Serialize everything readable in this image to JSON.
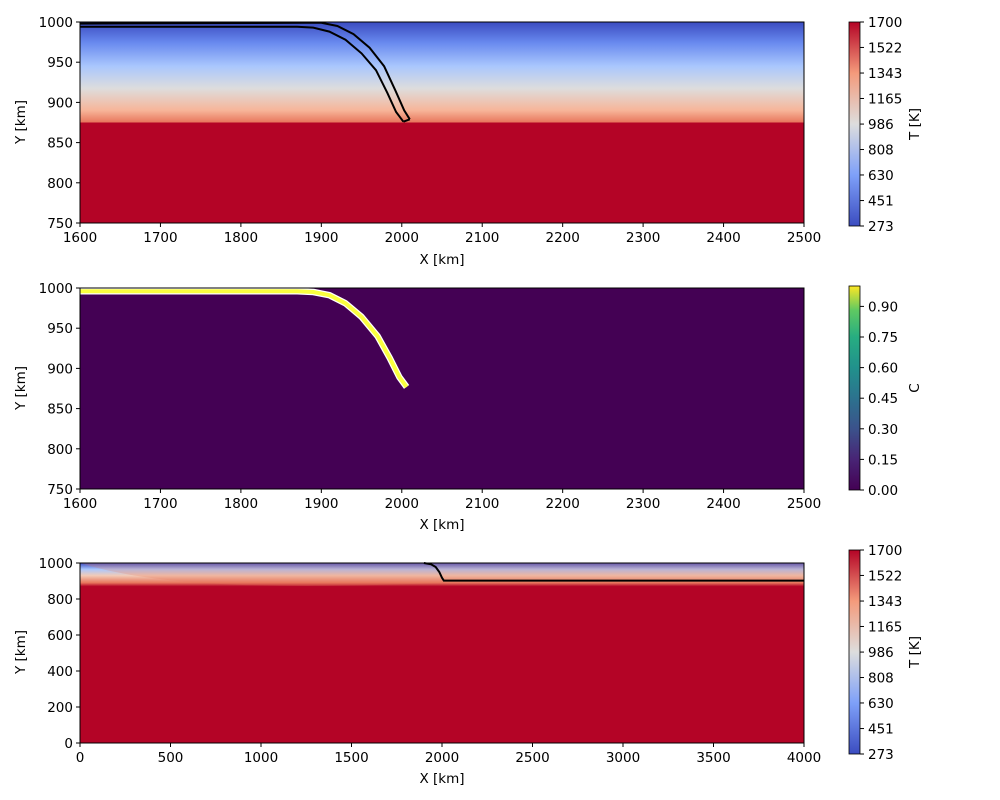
{
  "chart_data": [
    {
      "type": "heatmap",
      "xlabel": "X [km]",
      "ylabel": "Y [km]",
      "xlim": [
        1600,
        2500
      ],
      "ylim": [
        750,
        1000
      ],
      "xticks": [
        "1600",
        "1700",
        "1800",
        "1900",
        "2000",
        "2100",
        "2200",
        "2300",
        "2400",
        "2500"
      ],
      "yticks": [
        "750",
        "800",
        "850",
        "900",
        "950",
        "1000"
      ],
      "colorbar": {
        "label": "T [K]",
        "colormap": "coolwarm",
        "range": [
          273,
          1700
        ],
        "ticks": [
          "273",
          "451",
          "630",
          "808",
          "986",
          "1165",
          "1343",
          "1522",
          "1700"
        ]
      },
      "temperature_profile": {
        "surface_K": 273,
        "mantle_K": 1700,
        "plate_base_km": 875
      },
      "slab_outline": {
        "color": "#000000",
        "upper": [
          [
            1600,
            998
          ],
          [
            1880,
            999
          ],
          [
            1900,
            999
          ],
          [
            1920,
            995
          ],
          [
            1940,
            985
          ],
          [
            1960,
            968
          ],
          [
            1978,
            945
          ],
          [
            1992,
            915
          ],
          [
            2003,
            890
          ],
          [
            2010,
            879
          ]
        ],
        "lower": [
          [
            1600,
            994
          ],
          [
            1870,
            994
          ],
          [
            1890,
            993
          ],
          [
            1910,
            988
          ],
          [
            1930,
            978
          ],
          [
            1950,
            961
          ],
          [
            1968,
            940
          ],
          [
            1982,
            912
          ],
          [
            1993,
            888
          ],
          [
            2002,
            876
          ]
        ]
      }
    },
    {
      "type": "heatmap",
      "xlabel": "X [km]",
      "ylabel": "Y [km]",
      "xlim": [
        1600,
        2500
      ],
      "ylim": [
        750,
        1000
      ],
      "xticks": [
        "1600",
        "1700",
        "1800",
        "1900",
        "2000",
        "2100",
        "2200",
        "2300",
        "2400",
        "2500"
      ],
      "yticks": [
        "750",
        "800",
        "850",
        "900",
        "950",
        "1000"
      ],
      "colorbar": {
        "label": "C",
        "colormap": "viridis",
        "range": [
          0.0,
          1.0
        ],
        "ticks": [
          "0.00",
          "0.15",
          "0.30",
          "0.45",
          "0.60",
          "0.75",
          "0.90"
        ]
      },
      "background_value": 0.0,
      "crust_layer": {
        "value": 1.0,
        "color": "#fbff3f",
        "path": [
          [
            1600,
            996
          ],
          [
            1870,
            996
          ],
          [
            1890,
            995
          ],
          [
            1910,
            991
          ],
          [
            1930,
            981
          ],
          [
            1950,
            964
          ],
          [
            1970,
            940
          ],
          [
            1985,
            913
          ],
          [
            1997,
            889
          ],
          [
            2006,
            877
          ]
        ]
      }
    },
    {
      "type": "heatmap",
      "xlabel": "X [km]",
      "ylabel": "Y [km]",
      "xlim": [
        0,
        4000
      ],
      "ylim": [
        0,
        1000
      ],
      "xticks": [
        "0",
        "500",
        "1000",
        "1500",
        "2000",
        "2500",
        "3000",
        "3500",
        "4000"
      ],
      "yticks": [
        "0",
        "200",
        "400",
        "600",
        "800",
        "1000"
      ],
      "colorbar": {
        "label": "T [K]",
        "colormap": "coolwarm",
        "range": [
          273,
          1700
        ],
        "ticks": [
          "273",
          "451",
          "630",
          "808",
          "986",
          "1165",
          "1343",
          "1522",
          "1700"
        ]
      },
      "temperature_profile": {
        "surface_K": 273,
        "mantle_K": 1700,
        "plate_base_km": 875
      },
      "slab_outline": {
        "color": "#000000",
        "path": [
          [
            1900,
            1000
          ],
          [
            1940,
            993
          ],
          [
            1965,
            978
          ],
          [
            1985,
            950
          ],
          [
            2000,
            918
          ],
          [
            2010,
            902
          ],
          [
            4000,
            902
          ]
        ]
      }
    }
  ]
}
